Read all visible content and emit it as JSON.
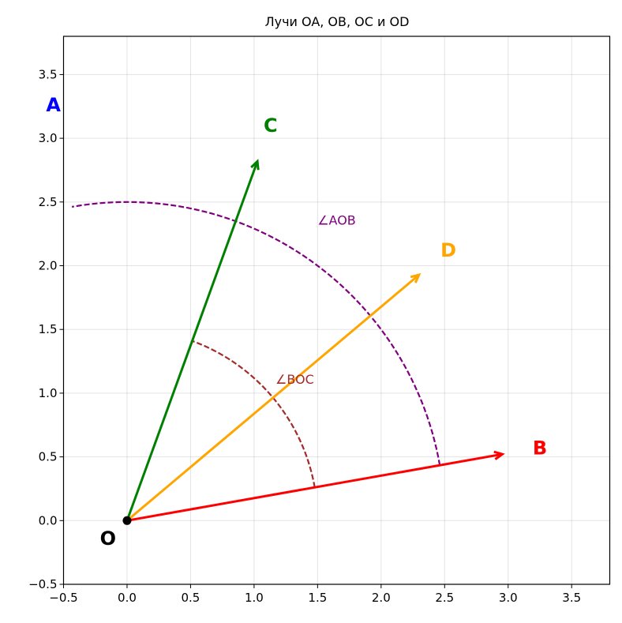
{
  "chart_data": {
    "type": "line",
    "title": "Лучи OA, OB, OC и OD",
    "xlabel": "",
    "ylabel": "",
    "xlim": [
      -0.5,
      3.8
    ],
    "ylim": [
      -0.5,
      3.8
    ],
    "grid": true,
    "xticks": [
      -0.5,
      0.0,
      0.5,
      1.0,
      1.5,
      2.0,
      2.5,
      3.0,
      3.5
    ],
    "yticks": [
      -0.5,
      0.0,
      0.5,
      1.0,
      1.5,
      2.0,
      2.5,
      3.0,
      3.5
    ],
    "tick_labels_x": [
      "−0.5",
      "0.0",
      "0.5",
      "1.0",
      "1.5",
      "2.0",
      "2.5",
      "3.0",
      "3.5"
    ],
    "tick_labels_y": [
      "−0.5",
      "0.0",
      "0.5",
      "1.0",
      "1.5",
      "2.0",
      "2.5",
      "3.0",
      "3.5"
    ],
    "origin": {
      "label": "O",
      "x": 0,
      "y": 0,
      "label_x": -0.15,
      "label_y": -0.14,
      "color": "#000000"
    },
    "rays": [
      {
        "name": "OB",
        "label": "B",
        "end": [
          2.954,
          0.521
        ],
        "color": "#ff0000",
        "label_x": 3.25,
        "label_y": 0.57
      },
      {
        "name": "OC",
        "label": "C",
        "end": [
          1.026,
          2.819
        ],
        "color": "#008000",
        "label_x": 1.13,
        "label_y": 3.1
      },
      {
        "name": "OD",
        "label": "D",
        "end": [
          2.298,
          1.928
        ],
        "color": "#ffa500",
        "label_x": 2.53,
        "label_y": 2.12
      }
    ],
    "points": [
      {
        "label": "A",
        "color": "#0000ff",
        "label_x": -0.58,
        "label_y": 3.26
      }
    ],
    "arcs": [
      {
        "name": "AOB",
        "label": "∠AOB",
        "radius": 2.5,
        "from_deg": 10,
        "to_deg": 100,
        "color": "#800080",
        "label_x": 1.65,
        "label_y": 2.36
      },
      {
        "name": "BOC",
        "label": "∠BOC",
        "radius": 1.5,
        "from_deg": 10,
        "to_deg": 70,
        "color": "#a52a2a",
        "label_x": 1.32,
        "label_y": 1.11
      }
    ]
  }
}
